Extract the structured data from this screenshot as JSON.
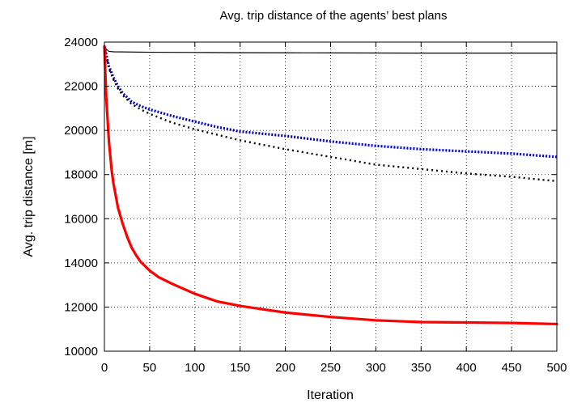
{
  "chart_data": {
    "type": "line",
    "title": "Avg. trip distance of the agents’ best plans",
    "xlabel": "Iteration",
    "ylabel": "Avg. trip distance [m]",
    "xlim": [
      0,
      500
    ],
    "ylim": [
      10000,
      24000
    ],
    "x_ticks": [
      "0",
      "50",
      "100",
      "150",
      "200",
      "250",
      "300",
      "350",
      "400",
      "450",
      "500"
    ],
    "y_ticks": [
      "10000",
      "12000",
      "14000",
      "16000",
      "18000",
      "20000",
      "22000",
      "24000"
    ],
    "grid": true,
    "legend": "none",
    "series": [
      {
        "color": "#000000",
        "style": "solid-thin",
        "x": [
          0,
          5,
          10,
          50,
          100,
          150,
          200,
          250,
          300,
          350,
          400,
          450,
          500
        ],
        "y": [
          23750,
          23580,
          23560,
          23540,
          23530,
          23520,
          23515,
          23510,
          23505,
          23500,
          23500,
          23500,
          23500
        ]
      },
      {
        "color": "#0000cc",
        "style": "dotted-thick",
        "x": [
          0,
          5,
          10,
          15,
          20,
          30,
          40,
          50,
          75,
          100,
          125,
          150,
          175,
          200,
          250,
          300,
          350,
          400,
          450,
          500
        ],
        "y": [
          23800,
          22900,
          22400,
          22000,
          21700,
          21300,
          21100,
          20950,
          20650,
          20400,
          20150,
          19950,
          19850,
          19750,
          19500,
          19300,
          19150,
          19050,
          18950,
          18800
        ]
      },
      {
        "color": "#000000",
        "style": "dotted-medium",
        "x": [
          0,
          5,
          10,
          15,
          20,
          30,
          40,
          50,
          75,
          100,
          125,
          150,
          175,
          200,
          250,
          300,
          350,
          400,
          450,
          500
        ],
        "y": [
          23800,
          22800,
          22300,
          21900,
          21600,
          21200,
          20950,
          20750,
          20350,
          20050,
          19800,
          19550,
          19350,
          19150,
          18800,
          18450,
          18250,
          18050,
          17900,
          17700
        ]
      },
      {
        "color": "#ff0000",
        "style": "solid-thick",
        "x": [
          0,
          2,
          5,
          8,
          10,
          15,
          20,
          25,
          30,
          35,
          40,
          50,
          60,
          75,
          100,
          125,
          150,
          175,
          200,
          250,
          300,
          350,
          400,
          450,
          500
        ],
        "y": [
          23800,
          21500,
          19500,
          18200,
          17600,
          16500,
          15800,
          15200,
          14700,
          14350,
          14050,
          13650,
          13350,
          13050,
          12600,
          12250,
          12050,
          11900,
          11750,
          11550,
          11400,
          11320,
          11300,
          11280,
          11230
        ]
      }
    ]
  }
}
